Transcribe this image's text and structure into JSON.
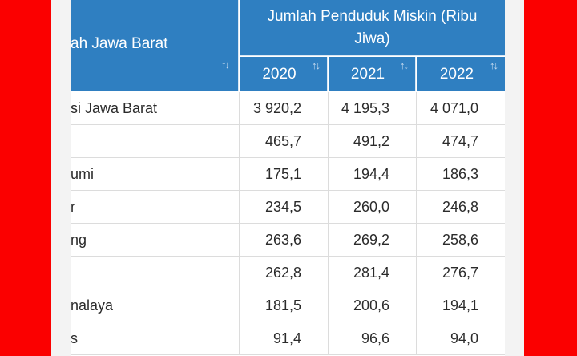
{
  "colors": {
    "side_band": "#fb0000",
    "header_bg": "#2f7fc1",
    "header_text": "#ffffff"
  },
  "table": {
    "region_header": "ah Jawa Barat",
    "group_header": "Jumlah Penduduk Miskin (Ribu Jiwa)",
    "years": [
      "2020",
      "2021",
      "2022"
    ],
    "sort_icon": "sort-arrows-icon",
    "rows": [
      {
        "name": "si Jawa Barat",
        "values": [
          "3 920,2",
          "4 195,3",
          "4 071,0"
        ]
      },
      {
        "name": "",
        "values": [
          "465,7",
          "491,2",
          "474,7"
        ]
      },
      {
        "name": "umi",
        "values": [
          "175,1",
          "194,4",
          "186,3"
        ]
      },
      {
        "name": "r",
        "values": [
          "234,5",
          "260,0",
          "246,8"
        ]
      },
      {
        "name": "ng",
        "values": [
          "263,6",
          "269,2",
          "258,6"
        ]
      },
      {
        "name": "",
        "values": [
          "262,8",
          "281,4",
          "276,7"
        ]
      },
      {
        "name": "nalaya",
        "values": [
          "181,5",
          "200,6",
          "194,1"
        ]
      },
      {
        "name": "s",
        "values": [
          "91,4",
          "96,6",
          "94,0"
        ]
      }
    ]
  }
}
